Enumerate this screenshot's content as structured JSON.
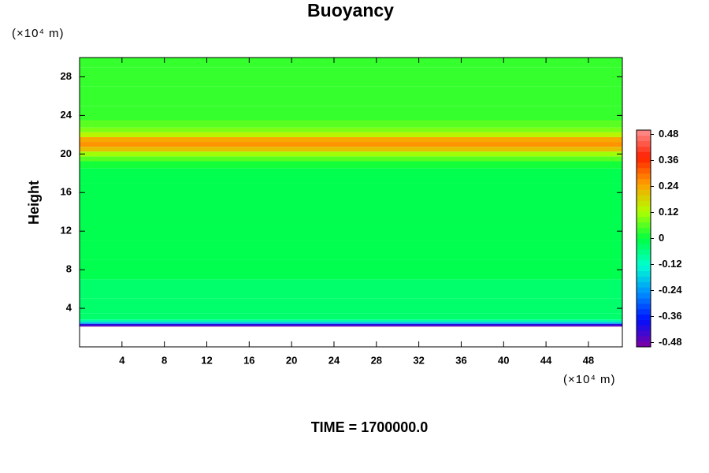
{
  "chart_data": {
    "type": "contour",
    "title": "Buoyancy",
    "y_label": "Height",
    "x_unit": "(×10⁴ m)",
    "y_unit": "(×10⁴ m)",
    "time_label": "TIME = 1700000.0",
    "xlim": [
      0,
      51.2
    ],
    "ylim": [
      0,
      30
    ],
    "xticks": [
      4,
      8,
      12,
      16,
      20,
      24,
      28,
      32,
      36,
      40,
      44,
      48
    ],
    "yticks": [
      4,
      8,
      12,
      16,
      20,
      24,
      28
    ],
    "y": [
      2.1,
      2.3,
      2.5,
      2.7,
      3,
      4,
      6,
      8,
      10,
      12,
      14,
      16,
      18,
      19,
      19.5,
      20,
      20.5,
      21,
      21.5,
      22,
      22.5,
      23,
      24,
      26,
      28,
      30
    ],
    "values": [
      -0.48,
      -0.4,
      -0.2,
      -0.08,
      -0.04,
      -0.03,
      -0.03,
      -0.02,
      -0.02,
      -0.01,
      -0.01,
      -0.01,
      -0.01,
      0.02,
      0.05,
      0.1,
      0.2,
      0.26,
      0.24,
      0.14,
      0.09,
      0.06,
      0.04,
      0.035,
      0.03,
      0.03
    ],
    "clim": [
      -0.5,
      0.5
    ],
    "levels": 40,
    "colorbar_ticks": [
      0.48,
      0.36,
      0.24,
      0.12,
      0,
      -0.12,
      -0.24,
      -0.36,
      -0.48
    ],
    "colormap": [
      "#8000a0",
      "#0010ff",
      "#0090ff",
      "#00ffd0",
      "#00ff40",
      "#b0ff00",
      "#ffa000",
      "#ff2000",
      "#ff9090"
    ]
  }
}
